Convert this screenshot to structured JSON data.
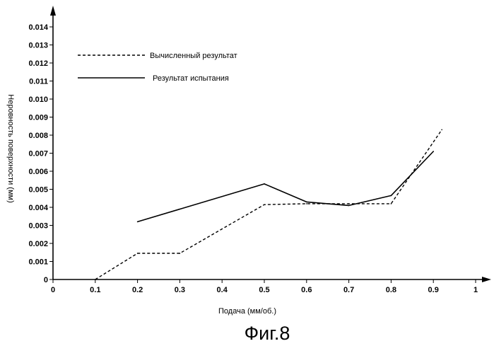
{
  "figure_label": "Фиг.8",
  "chart_data": {
    "type": "line",
    "xlabel": "Подача (мм/об.)",
    "ylabel": "Неровность поверхности (мм)",
    "xlim": [
      0,
      1
    ],
    "ylim": [
      0,
      0.014
    ],
    "x_ticks": [
      "0",
      "0.1",
      "0.2",
      "0.3",
      "0.4",
      "0.5",
      "0.6",
      "0.7",
      "0.8",
      "0.9",
      "1"
    ],
    "y_ticks": [
      "0",
      "0.001",
      "0.002",
      "0.003",
      "0.004",
      "0.005",
      "0.006",
      "0.007",
      "0.008",
      "0.009",
      "0.010",
      "0.011",
      "0.012",
      "0.013",
      "0.014"
    ],
    "grid": false,
    "legend_position": "top-left",
    "series": [
      {
        "name": "Вычисленный результат",
        "style": "dashed",
        "color": "#000000",
        "x": [
          0.1,
          0.2,
          0.3,
          0.5,
          0.6,
          0.7,
          0.8,
          0.92
        ],
        "y": [
          0.0,
          0.00145,
          0.00145,
          0.00415,
          0.0042,
          0.0042,
          0.0042,
          0.0083
        ]
      },
      {
        "name": "Результат испытания",
        "style": "solid",
        "color": "#000000",
        "x": [
          0.2,
          0.5,
          0.6,
          0.7,
          0.8,
          0.9
        ],
        "y": [
          0.0032,
          0.0053,
          0.0043,
          0.0041,
          0.00465,
          0.0071
        ]
      }
    ]
  }
}
